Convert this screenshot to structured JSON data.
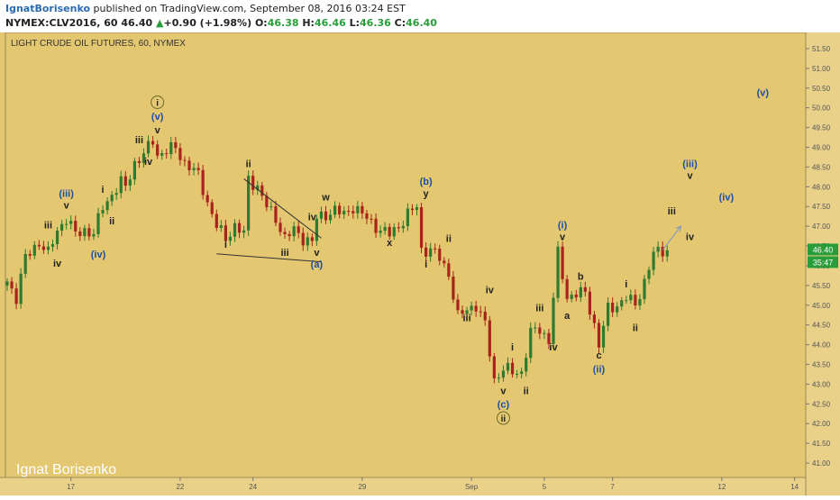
{
  "header": {
    "author": "IgnatBorisenko",
    "published_text": " published on TradingView.com, September 08, 2016 03:24 EST",
    "symbol": "NYMEX:CLV2016, 60",
    "last": "46.40",
    "change_arrow": "▲",
    "change": "+0.90 (+1.98%)",
    "o_label": "O:",
    "o_value": "46.38",
    "h_label": "H:",
    "h_value": "46.46",
    "l_label": "L:",
    "l_value": "46.36",
    "c_label": "C:",
    "c_value": "46.40"
  },
  "chart_data": {
    "type": "candlestick",
    "title": "LIGHT CRUDE OIL FUTURES, 60, NYMEX",
    "watermark": "Ignat Borisenko",
    "ylim": [
      40.75,
      51.75
    ],
    "y_ticks": [
      "51.50",
      "51.00",
      "50.50",
      "50.00",
      "49.50",
      "49.00",
      "48.50",
      "48.00",
      "47.50",
      "47.00",
      "46.50",
      "46.00",
      "45.50",
      "45.00",
      "44.50",
      "44.00",
      "43.50",
      "43.00",
      "42.50",
      "42.00",
      "41.50",
      "41.00"
    ],
    "x_ticks": [
      {
        "label": "17",
        "idx": 14
      },
      {
        "label": "22",
        "idx": 38
      },
      {
        "label": "24",
        "idx": 54
      },
      {
        "label": "29",
        "idx": 78
      },
      {
        "label": "Sep",
        "idx": 102
      },
      {
        "label": "5",
        "idx": 118
      },
      {
        "label": "7",
        "idx": 133
      },
      {
        "label": "12",
        "idx": 157
      },
      {
        "label": "14",
        "idx": 173
      }
    ],
    "last_price_label": "46.40",
    "countdown_label": "35:47",
    "path": [
      [
        0,
        45.6
      ],
      [
        2,
        45.2
      ],
      [
        4,
        46.2
      ],
      [
        7,
        46.6
      ],
      [
        9,
        46.3
      ],
      [
        11,
        46.9
      ],
      [
        13,
        47.2
      ],
      [
        15,
        46.8
      ],
      [
        17,
        46.9
      ],
      [
        19,
        46.8
      ],
      [
        21,
        47.5
      ],
      [
        23,
        47.8
      ],
      [
        25,
        48.1
      ],
      [
        26,
        48.0
      ],
      [
        28,
        48.6
      ],
      [
        30,
        48.8
      ],
      [
        32,
        49.2
      ],
      [
        33,
        48.8
      ],
      [
        35,
        48.9
      ],
      [
        37,
        49.0
      ],
      [
        39,
        48.6
      ],
      [
        42,
        48.3
      ],
      [
        44,
        47.6
      ],
      [
        46,
        47.0
      ],
      [
        48,
        46.7
      ],
      [
        50,
        47.0
      ],
      [
        52,
        46.8
      ],
      [
        53,
        48.2
      ],
      [
        55,
        48.0
      ],
      [
        57,
        47.5
      ],
      [
        59,
        47.2
      ],
      [
        61,
        46.7
      ],
      [
        63,
        46.9
      ],
      [
        65,
        46.7
      ],
      [
        67,
        46.6
      ],
      [
        68,
        47.2
      ],
      [
        70,
        47.3
      ],
      [
        72,
        47.4
      ],
      [
        74,
        47.3
      ],
      [
        76,
        47.5
      ],
      [
        78,
        47.3
      ],
      [
        80,
        47.1
      ],
      [
        82,
        46.9
      ],
      [
        84,
        46.8
      ],
      [
        86,
        47.0
      ],
      [
        88,
        47.3
      ],
      [
        90,
        47.5
      ],
      [
        91,
        46.4
      ],
      [
        93,
        46.4
      ],
      [
        95,
        46.2
      ],
      [
        97,
        45.8
      ],
      [
        99,
        44.7
      ],
      [
        101,
        44.9
      ],
      [
        103,
        45.0
      ],
      [
        105,
        44.5
      ],
      [
        107,
        43.1
      ],
      [
        109,
        43.4
      ],
      [
        111,
        43.3
      ],
      [
        113,
        43.3
      ],
      [
        115,
        44.3
      ],
      [
        117,
        44.4
      ],
      [
        119,
        44.1
      ],
      [
        121,
        46.3
      ],
      [
        123,
        45.2
      ],
      [
        125,
        45.3
      ],
      [
        127,
        45.3
      ],
      [
        129,
        44.5
      ],
      [
        130,
        44.0
      ],
      [
        132,
        44.9
      ],
      [
        134,
        45.0
      ],
      [
        136,
        45.2
      ],
      [
        138,
        45.0
      ],
      [
        140,
        45.6
      ],
      [
        142,
        46.3
      ],
      [
        144,
        46.4
      ],
      [
        145,
        46.4
      ]
    ],
    "trendlines": [
      {
        "from": [
          52,
          48.2
        ],
        "to": [
          69,
          46.7
        ]
      },
      {
        "from": [
          46,
          46.3
        ],
        "to": [
          69,
          46.1
        ]
      }
    ],
    "projection_arrow": {
      "from": [
        144,
        46.4
      ],
      "to": [
        148,
        47.0
      ]
    },
    "wave_labels": [
      {
        "text": "i",
        "idx": 33,
        "price": 50.05,
        "circle": true
      },
      {
        "text": "(v)",
        "idx": 33,
        "price": 49.7,
        "color": "#1e4fa0"
      },
      {
        "text": "v",
        "idx": 33,
        "price": 49.35
      },
      {
        "text": "iii",
        "idx": 29,
        "price": 49.1
      },
      {
        "text": "iv",
        "idx": 31,
        "price": 48.55
      },
      {
        "text": "i",
        "idx": 21,
        "price": 47.85
      },
      {
        "text": "ii",
        "idx": 23,
        "price": 47.05
      },
      {
        "text": "(iii)",
        "idx": 13,
        "price": 47.75,
        "color": "#1e4fa0"
      },
      {
        "text": "v",
        "idx": 13,
        "price": 47.45
      },
      {
        "text": "iii",
        "idx": 9,
        "price": 46.95
      },
      {
        "text": "iv",
        "idx": 11,
        "price": 45.98
      },
      {
        "text": "(iv)",
        "idx": 20,
        "price": 46.2,
        "color": "#1e4fa0"
      },
      {
        "text": "ii",
        "idx": 53,
        "price": 48.5
      },
      {
        "text": "i",
        "idx": 48,
        "price": 46.45
      },
      {
        "text": "iii",
        "idx": 61,
        "price": 46.25
      },
      {
        "text": "iv",
        "idx": 67,
        "price": 47.15
      },
      {
        "text": "v",
        "idx": 68,
        "price": 46.25
      },
      {
        "text": "(a)",
        "idx": 68,
        "price": 45.95,
        "color": "#1e4fa0"
      },
      {
        "text": "w",
        "idx": 70,
        "price": 47.65
      },
      {
        "text": "x",
        "idx": 84,
        "price": 46.5
      },
      {
        "text": "(b)",
        "idx": 92,
        "price": 48.05,
        "color": "#1e4fa0"
      },
      {
        "text": "y",
        "idx": 92,
        "price": 47.75
      },
      {
        "text": "ii",
        "idx": 97,
        "price": 46.6
      },
      {
        "text": "i",
        "idx": 92,
        "price": 45.95
      },
      {
        "text": "iv",
        "idx": 106,
        "price": 45.3
      },
      {
        "text": "iii",
        "idx": 101,
        "price": 44.6
      },
      {
        "text": "i",
        "idx": 111,
        "price": 43.85
      },
      {
        "text": "ii",
        "idx": 114,
        "price": 42.75
      },
      {
        "text": "v",
        "idx": 109,
        "price": 42.75
      },
      {
        "text": "(c)",
        "idx": 109,
        "price": 42.4,
        "color": "#1e4fa0"
      },
      {
        "text": "ii",
        "idx": 109,
        "price": 42.05,
        "circle": true
      },
      {
        "text": "iii",
        "idx": 117,
        "price": 44.85
      },
      {
        "text": "iv",
        "idx": 120,
        "price": 43.85
      },
      {
        "text": "(i)",
        "idx": 122,
        "price": 46.95,
        "color": "#1e4fa0"
      },
      {
        "text": "v",
        "idx": 122,
        "price": 46.65
      },
      {
        "text": "b",
        "idx": 126,
        "price": 45.65
      },
      {
        "text": "a",
        "idx": 123,
        "price": 44.65
      },
      {
        "text": "c",
        "idx": 130,
        "price": 43.65
      },
      {
        "text": "(ii)",
        "idx": 130,
        "price": 43.3,
        "color": "#1e4fa0"
      },
      {
        "text": "i",
        "idx": 136,
        "price": 45.45
      },
      {
        "text": "ii",
        "idx": 138,
        "price": 44.35
      },
      {
        "text": "iii",
        "idx": 146,
        "price": 47.3
      },
      {
        "text": "iv",
        "idx": 150,
        "price": 46.65
      },
      {
        "text": "(iii)",
        "idx": 150,
        "price": 48.5,
        "color": "#1e4fa0"
      },
      {
        "text": "v",
        "idx": 150,
        "price": 48.2
      },
      {
        "text": "(iv)",
        "idx": 158,
        "price": 47.65,
        "color": "#1e4fa0"
      },
      {
        "text": "(v)",
        "idx": 166,
        "price": 50.3,
        "color": "#1e4fa0"
      }
    ]
  },
  "colors": {
    "background": "#e3c771",
    "axis_bg": "#e9d18a",
    "up_candle": "#2f7a2f",
    "down_candle": "#a8231b",
    "label_text": "#222222",
    "label_blue": "#1e4fa0",
    "trendline": "#333333",
    "arrow": "#7a95c4",
    "price_badge": "#2a9d3b"
  }
}
